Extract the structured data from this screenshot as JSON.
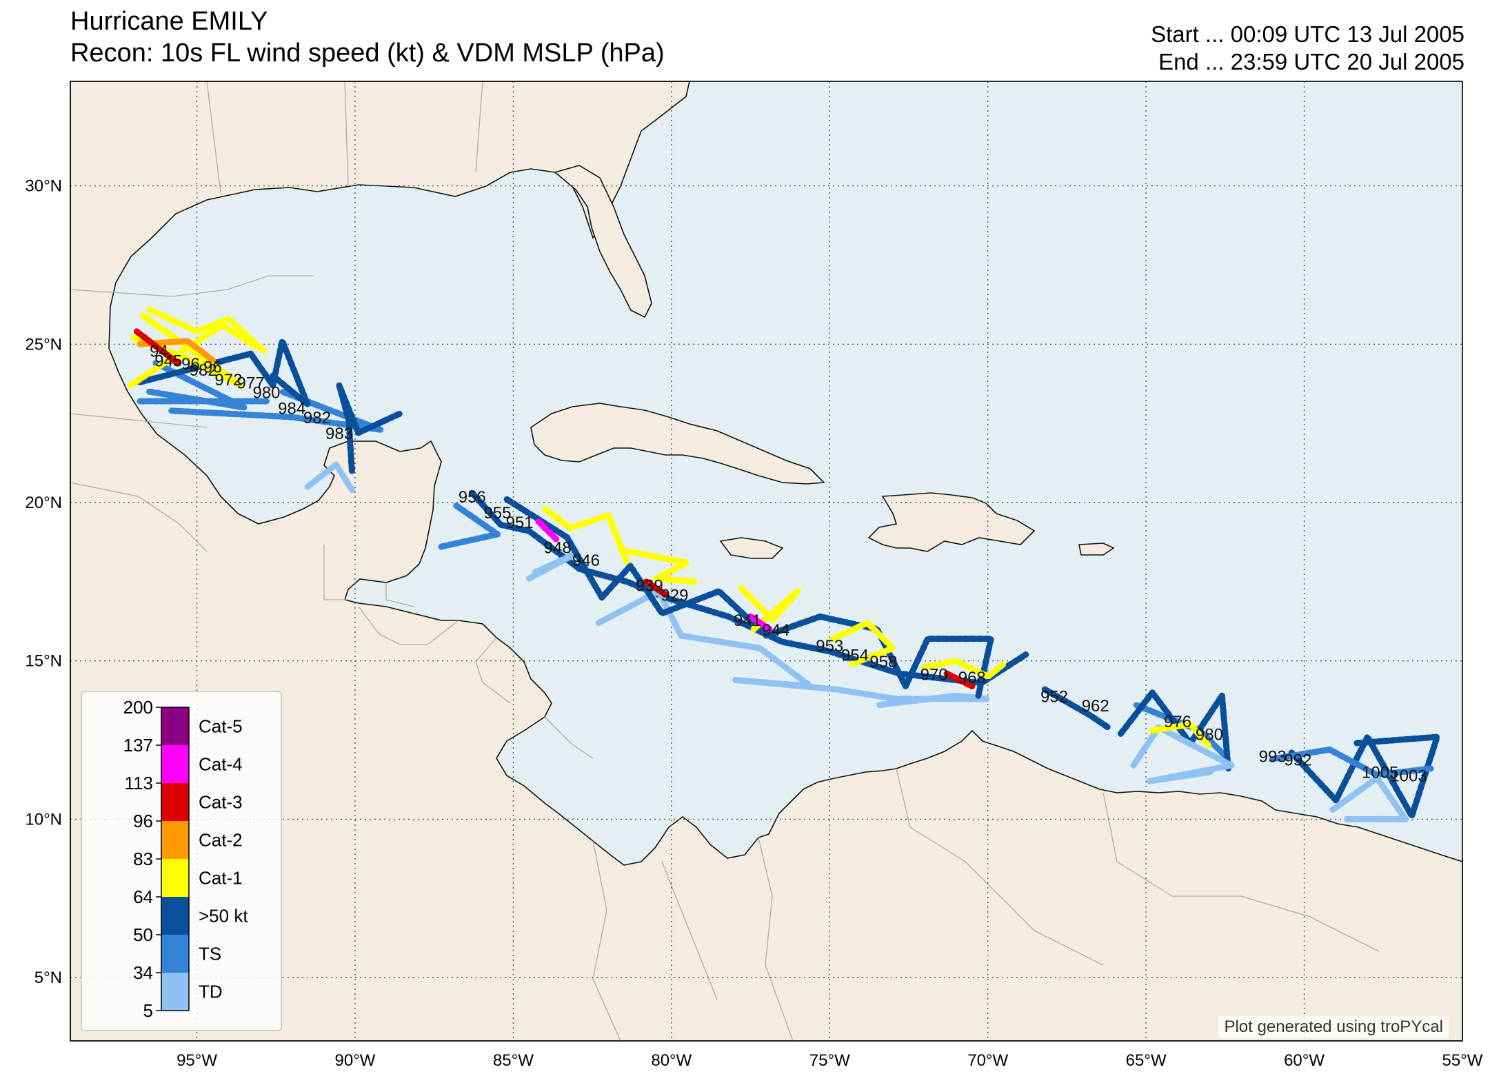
{
  "title": {
    "line1": "Hurricane EMILY",
    "line2": "Recon: 10s FL wind speed (kt) & VDM MSLP (hPa)"
  },
  "time_range": {
    "start": "Start ... 00:09 UTC 13 Jul 2005",
    "end": "End ... 23:59 UTC 20 Jul 2005"
  },
  "map": {
    "extent": {
      "lon_min": -99.0,
      "lon_max": -55.0,
      "lat_min": 3.0,
      "lat_max": 33.3
    },
    "colors": {
      "ocean": "#e3eff3",
      "land": "#f4ece0",
      "coast": "#000000",
      "borders": "#b3aaa0",
      "grid": "#555555"
    },
    "lat_ticks": [
      {
        "value": 5,
        "label": "5°N"
      },
      {
        "value": 10,
        "label": "10°N"
      },
      {
        "value": 15,
        "label": "15°N"
      },
      {
        "value": 20,
        "label": "20°N"
      },
      {
        "value": 25,
        "label": "25°N"
      },
      {
        "value": 30,
        "label": "30°N"
      }
    ],
    "lon_ticks": [
      {
        "value": -95,
        "label": "95°W"
      },
      {
        "value": -90,
        "label": "90°W"
      },
      {
        "value": -85,
        "label": "85°W"
      },
      {
        "value": -80,
        "label": "80°W"
      },
      {
        "value": -75,
        "label": "75°W"
      },
      {
        "value": -70,
        "label": "70°W"
      },
      {
        "value": -65,
        "label": "65°W"
      },
      {
        "value": -60,
        "label": "60°W"
      },
      {
        "value": -55,
        "label": "55°W"
      }
    ]
  },
  "legend": {
    "ticks": [
      "200",
      "137",
      "113",
      "96",
      "83",
      "64",
      "50",
      "34",
      "5"
    ],
    "categories": [
      {
        "label": "Cat-5",
        "color": "#8b0082"
      },
      {
        "label": "Cat-4",
        "color": "#ff00ff"
      },
      {
        "label": "Cat-3",
        "color": "#dd0000"
      },
      {
        "label": "Cat-2",
        "color": "#ff9900"
      },
      {
        "label": "Cat-1",
        "color": "#ffff00"
      },
      {
        "label": ">50 kt",
        "color": "#0a4f9a"
      },
      {
        "label": "TS",
        "color": "#3483d6"
      },
      {
        "label": "TD",
        "color": "#8fc2f2"
      }
    ]
  },
  "credit": "Plot generated using troPYcal",
  "chart_data": {
    "type": "scatter",
    "title": "Hurricane EMILY",
    "subtitle": "Recon: 10s FL wind speed (kt) & VDM MSLP (hPa)",
    "vdm_mslp": [
      {
        "lon": -96.2,
        "lat": 24.6,
        "value": "94"
      },
      {
        "lon": -95.9,
        "lat": 24.3,
        "value": "945"
      },
      {
        "lon": -95.2,
        "lat": 24.2,
        "value": "96"
      },
      {
        "lon": -94.8,
        "lat": 24.0,
        "value": "982"
      },
      {
        "lon": -94.5,
        "lat": 24.1,
        "value": "96"
      },
      {
        "lon": -94.0,
        "lat": 23.7,
        "value": "972"
      },
      {
        "lon": -93.3,
        "lat": 23.6,
        "value": "977"
      },
      {
        "lon": -92.8,
        "lat": 23.3,
        "value": "980"
      },
      {
        "lon": -92.0,
        "lat": 22.8,
        "value": "984"
      },
      {
        "lon": -91.2,
        "lat": 22.5,
        "value": "982"
      },
      {
        "lon": -90.5,
        "lat": 22.0,
        "value": "983"
      },
      {
        "lon": -86.3,
        "lat": 20.0,
        "value": "956"
      },
      {
        "lon": -85.5,
        "lat": 19.5,
        "value": "955"
      },
      {
        "lon": -84.8,
        "lat": 19.2,
        "value": "951"
      },
      {
        "lon": -83.6,
        "lat": 18.4,
        "value": "948"
      },
      {
        "lon": -82.7,
        "lat": 18.0,
        "value": "946"
      },
      {
        "lon": -80.7,
        "lat": 17.2,
        "value": "939"
      },
      {
        "lon": -79.9,
        "lat": 16.9,
        "value": "929"
      },
      {
        "lon": -77.6,
        "lat": 16.1,
        "value": "941"
      },
      {
        "lon": -76.7,
        "lat": 15.8,
        "value": "944"
      },
      {
        "lon": -75.0,
        "lat": 15.3,
        "value": "953"
      },
      {
        "lon": -74.2,
        "lat": 15.0,
        "value": "954"
      },
      {
        "lon": -73.3,
        "lat": 14.8,
        "value": "958"
      },
      {
        "lon": -71.7,
        "lat": 14.4,
        "value": "970"
      },
      {
        "lon": -70.5,
        "lat": 14.3,
        "value": "968"
      },
      {
        "lon": -67.9,
        "lat": 13.7,
        "value": "952"
      },
      {
        "lon": -66.6,
        "lat": 13.4,
        "value": "962"
      },
      {
        "lon": -64.0,
        "lat": 12.9,
        "value": "976"
      },
      {
        "lon": -63.0,
        "lat": 12.5,
        "value": "980"
      },
      {
        "lon": -61.0,
        "lat": 11.8,
        "value": "993"
      },
      {
        "lon": -60.2,
        "lat": 11.7,
        "value": "992"
      },
      {
        "lon": -57.6,
        "lat": 11.3,
        "value": "1005"
      },
      {
        "lon": -56.7,
        "lat": 11.2,
        "value": "1003"
      }
    ],
    "flight_tracks": [
      {
        "cat": "TS",
        "pts": [
          [
            -96.8,
            23.2
          ],
          [
            -92.8,
            23.2
          ]
        ]
      },
      {
        "cat": "TS",
        "pts": [
          [
            -95.8,
            22.9
          ],
          [
            -92.0,
            22.7
          ],
          [
            -89.2,
            22.3
          ],
          [
            -92.3,
            23.5
          ]
        ]
      },
      {
        "cat": "TS",
        "pts": [
          [
            -96.5,
            23.5
          ],
          [
            -93.5,
            23.0
          ],
          [
            -96.3,
            24.4
          ]
        ]
      },
      {
        "cat": ">50 kt",
        "pts": [
          [
            -96.8,
            23.8
          ],
          [
            -93.3,
            24.7
          ],
          [
            -92.6,
            23.7
          ],
          [
            -92.3,
            25.1
          ],
          [
            -91.5,
            23.1
          ],
          [
            -92.6,
            24.0
          ]
        ]
      },
      {
        "cat": ">50 kt",
        "pts": [
          [
            -90.1,
            21.0
          ],
          [
            -90.2,
            22.6
          ],
          [
            -90.5,
            23.7
          ],
          [
            -89.9,
            22.2
          ],
          [
            -88.6,
            22.8
          ]
        ]
      },
      {
        "cat": "TD",
        "pts": [
          [
            -91.5,
            20.5
          ],
          [
            -90.6,
            21.2
          ],
          [
            -90.1,
            20.4
          ]
        ]
      },
      {
        "cat": "Cat-1",
        "pts": [
          [
            -97.1,
            23.7
          ],
          [
            -94.2,
            25.6
          ],
          [
            -93.1,
            24.9
          ]
        ]
      },
      {
        "cat": "Cat-1",
        "pts": [
          [
            -97.0,
            25.2
          ],
          [
            -95.4,
            24.6
          ],
          [
            -93.6,
            23.7
          ],
          [
            -96.7,
            25.9
          ],
          [
            -94.6,
            24.4
          ]
        ]
      },
      {
        "cat": "Cat-1",
        "pts": [
          [
            -96.5,
            26.1
          ],
          [
            -95.0,
            25.4
          ],
          [
            -94.0,
            25.8
          ],
          [
            -92.9,
            24.8
          ]
        ]
      },
      {
        "cat": "Cat-2",
        "pts": [
          [
            -96.8,
            25.0
          ],
          [
            -95.3,
            25.1
          ],
          [
            -94.5,
            24.5
          ]
        ]
      },
      {
        "cat": "Cat-3",
        "pts": [
          [
            -96.9,
            25.4
          ],
          [
            -95.6,
            24.4
          ]
        ]
      },
      {
        "cat": ">50 kt",
        "pts": [
          [
            -86.3,
            20.3
          ],
          [
            -85.4,
            19.3
          ],
          [
            -84.5,
            19.1
          ],
          [
            -83.7,
            18.5
          ],
          [
            -82.9,
            17.9
          ],
          [
            -81.4,
            17.5
          ],
          [
            -80.2,
            17.0
          ],
          [
            -78.2,
            16.4
          ],
          [
            -76.5,
            15.6
          ],
          [
            -75.0,
            15.3
          ],
          [
            -72.8,
            14.6
          ],
          [
            -70.2,
            14.3
          ],
          [
            -68.8,
            15.2
          ]
        ]
      },
      {
        "cat": "TS",
        "pts": [
          [
            -86.8,
            19.9
          ],
          [
            -85.5,
            19.0
          ],
          [
            -87.3,
            18.6
          ]
        ]
      },
      {
        "cat": "TD",
        "pts": [
          [
            -84.5,
            17.6
          ],
          [
            -83.0,
            18.4
          ],
          [
            -84.3,
            17.8
          ]
        ]
      },
      {
        "cat": "TD",
        "pts": [
          [
            -82.3,
            16.2
          ],
          [
            -80.4,
            17.2
          ],
          [
            -79.7,
            15.8
          ],
          [
            -77.2,
            15.4
          ],
          [
            -75.6,
            14.2
          ],
          [
            -78.0,
            14.4
          ],
          [
            -74.8,
            14.1
          ],
          [
            -72.9,
            13.8
          ],
          [
            -70.0,
            13.8
          ],
          [
            -71.0,
            13.9
          ],
          [
            -73.5,
            13.6
          ]
        ]
      },
      {
        "cat": ">50 kt",
        "pts": [
          [
            -85.2,
            20.1
          ],
          [
            -83.3,
            18.9
          ],
          [
            -82.2,
            17.0
          ],
          [
            -81.3,
            18.0
          ],
          [
            -80.3,
            16.5
          ],
          [
            -78.5,
            17.2
          ],
          [
            -77.0,
            15.8
          ],
          [
            -75.3,
            16.4
          ],
          [
            -73.5,
            16.0
          ],
          [
            -72.6,
            14.2
          ],
          [
            -71.9,
            15.7
          ],
          [
            -69.9,
            15.7
          ],
          [
            -70.3,
            13.9
          ]
        ]
      },
      {
        "cat": "Cat-1",
        "pts": [
          [
            -84.0,
            19.8
          ],
          [
            -83.2,
            19.2
          ],
          [
            -82.0,
            19.6
          ],
          [
            -81.4,
            18.1
          ]
        ]
      },
      {
        "cat": "Cat-1",
        "pts": [
          [
            -81.6,
            18.5
          ],
          [
            -79.5,
            18.1
          ],
          [
            -80.5,
            17.6
          ],
          [
            -79.2,
            17.5
          ]
        ]
      },
      {
        "cat": "Cat-1",
        "pts": [
          [
            -77.8,
            17.3
          ],
          [
            -76.8,
            16.3
          ],
          [
            -76.0,
            17.2
          ],
          [
            -77.4,
            16.0
          ]
        ]
      },
      {
        "cat": "Cat-1",
        "pts": [
          [
            -74.9,
            15.7
          ],
          [
            -73.8,
            16.2
          ],
          [
            -73.0,
            15.4
          ],
          [
            -74.3,
            14.9
          ]
        ]
      },
      {
        "cat": "Cat-1",
        "pts": [
          [
            -72.0,
            14.8
          ],
          [
            -71.0,
            15.0
          ],
          [
            -70.0,
            14.5
          ],
          [
            -69.5,
            14.9
          ]
        ]
      },
      {
        "cat": "Cat-4",
        "pts": [
          [
            -84.2,
            19.4
          ],
          [
            -83.6,
            18.8
          ]
        ]
      },
      {
        "cat": "Cat-4",
        "pts": [
          [
            -77.5,
            16.4
          ],
          [
            -76.9,
            16.0
          ]
        ]
      },
      {
        "cat": "Cat-3",
        "pts": [
          [
            -80.8,
            17.5
          ],
          [
            -80.2,
            17.1
          ]
        ]
      },
      {
        "cat": "Cat-3",
        "pts": [
          [
            -71.3,
            14.6
          ],
          [
            -70.5,
            14.2
          ]
        ]
      },
      {
        "cat": ">50 kt",
        "pts": [
          [
            -68.2,
            14.1
          ],
          [
            -66.8,
            13.3
          ],
          [
            -66.2,
            12.9
          ]
        ]
      },
      {
        "cat": "TS",
        "pts": [
          [
            -65.3,
            13.6
          ],
          [
            -63.3,
            12.8
          ],
          [
            -62.5,
            12.0
          ]
        ]
      },
      {
        "cat": ">50 kt",
        "pts": [
          [
            -65.8,
            12.7
          ],
          [
            -64.8,
            14.0
          ],
          [
            -63.6,
            12.4
          ],
          [
            -62.6,
            13.9
          ],
          [
            -62.4,
            11.6
          ]
        ]
      },
      {
        "cat": "TD",
        "pts": [
          [
            -65.4,
            11.7
          ],
          [
            -64.6,
            12.9
          ],
          [
            -62.3,
            11.7
          ],
          [
            -64.9,
            11.2
          ],
          [
            -62.9,
            11.5
          ]
        ]
      },
      {
        "cat": "Cat-1",
        "pts": [
          [
            -64.8,
            12.8
          ],
          [
            -63.6,
            13.0
          ],
          [
            -63.0,
            12.3
          ]
        ]
      },
      {
        "cat": ">50 kt",
        "pts": [
          [
            -60.4,
            12.1
          ],
          [
            -59.0,
            10.6
          ],
          [
            -58.0,
            12.6
          ],
          [
            -56.6,
            10.1
          ],
          [
            -55.8,
            12.6
          ],
          [
            -58.4,
            12.4
          ]
        ]
      },
      {
        "cat": "TS",
        "pts": [
          [
            -61.0,
            11.9
          ],
          [
            -59.2,
            12.2
          ],
          [
            -57.7,
            11.4
          ],
          [
            -56.0,
            11.6
          ]
        ]
      },
      {
        "cat": "TD",
        "pts": [
          [
            -59.1,
            10.3
          ],
          [
            -57.7,
            11.3
          ],
          [
            -56.8,
            10.0
          ],
          [
            -58.7,
            10.0
          ]
        ]
      }
    ]
  }
}
